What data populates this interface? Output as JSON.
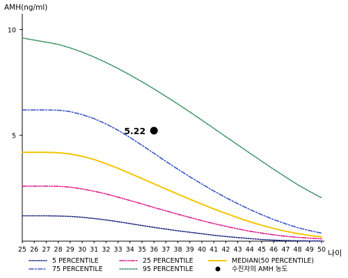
{
  "chart_data": {
    "type": "line",
    "ylabel": "AMH(ng/ml)",
    "xlabel": "나이",
    "x": [
      25,
      26,
      27,
      28,
      29,
      30,
      31,
      32,
      33,
      34,
      35,
      36,
      37,
      38,
      39,
      40,
      41,
      42,
      43,
      44,
      45,
      46,
      47,
      48,
      49,
      50
    ],
    "xlim": [
      25,
      50
    ],
    "ylim": [
      0,
      11
    ],
    "yticks": [
      5,
      10
    ],
    "grid": false,
    "legend_position": "bottom",
    "series": [
      {
        "name": "5 PERCENTILE",
        "color": "#1a237e",
        "dash": "dotted",
        "values": [
          1.2,
          1.2,
          1.2,
          1.19,
          1.17,
          1.13,
          1.07,
          1.0,
          0.92,
          0.83,
          0.74,
          0.65,
          0.57,
          0.49,
          0.42,
          0.35,
          0.28,
          0.22,
          0.17,
          0.12,
          0.08,
          0.05,
          0.03,
          0.02,
          0.01,
          0.01
        ]
      },
      {
        "name": "25 PERCENTILE",
        "color": "#e0198a",
        "dash": "dash-dot-dot",
        "values": [
          2.6,
          2.6,
          2.6,
          2.59,
          2.55,
          2.47,
          2.36,
          2.23,
          2.08,
          1.92,
          1.76,
          1.59,
          1.43,
          1.27,
          1.12,
          0.97,
          0.83,
          0.7,
          0.58,
          0.47,
          0.38,
          0.3,
          0.23,
          0.18,
          0.14,
          0.11
        ]
      },
      {
        "name": "MEDIAN(50 PERCENTILE)",
        "color": "#f5c400",
        "dash": "solid",
        "values": [
          4.2,
          4.2,
          4.2,
          4.18,
          4.12,
          4.01,
          3.86,
          3.66,
          3.44,
          3.2,
          2.96,
          2.71,
          2.46,
          2.22,
          1.98,
          1.75,
          1.52,
          1.31,
          1.11,
          0.92,
          0.75,
          0.6,
          0.47,
          0.36,
          0.27,
          0.2
        ]
      },
      {
        "name": "75 PERCENTILE",
        "color": "#3652c4",
        "dash": "dash-dot",
        "values": [
          6.2,
          6.2,
          6.2,
          6.19,
          6.12,
          5.98,
          5.79,
          5.54,
          5.24,
          4.9,
          4.53,
          4.15,
          3.77,
          3.4,
          3.04,
          2.7,
          2.37,
          2.06,
          1.77,
          1.5,
          1.25,
          1.02,
          0.82,
          0.64,
          0.5,
          0.38
        ]
      },
      {
        "name": "95 PERCENTILE",
        "color": "#2e8b57",
        "dash": "dotted",
        "values": [
          9.6,
          9.5,
          9.4,
          9.3,
          9.13,
          8.93,
          8.7,
          8.44,
          8.16,
          7.85,
          7.53,
          7.19,
          6.84,
          6.48,
          6.1,
          5.72,
          5.33,
          4.94,
          4.55,
          4.16,
          3.78,
          3.4,
          3.03,
          2.67,
          2.35,
          2.05
        ]
      }
    ],
    "points": [
      {
        "name": "수진자의 AMH 농도",
        "x": 36,
        "y": 5.22,
        "label": "5.22",
        "color": "#000000"
      }
    ]
  }
}
